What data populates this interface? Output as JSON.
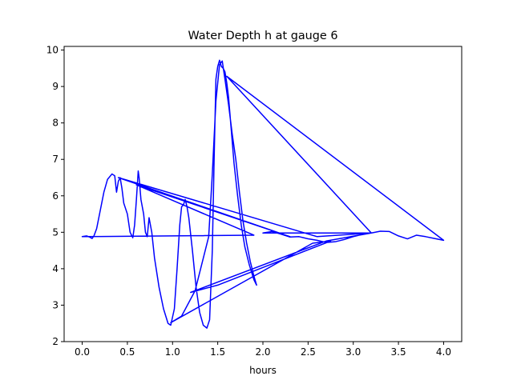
{
  "chart_data": {
    "type": "line",
    "title": "Water Depth h at gauge 6",
    "xlabel": "hours",
    "ylabel": "",
    "xlim": [
      -0.2,
      4.2
    ],
    "ylim": [
      2.0,
      10.1
    ],
    "xticks": [
      "0.0",
      "0.5",
      "1.0",
      "1.5",
      "2.0",
      "2.5",
      "3.0",
      "3.5",
      "4.0"
    ],
    "yticks": [
      "2",
      "3",
      "4",
      "5",
      "6",
      "7",
      "8",
      "9",
      "10"
    ],
    "grid": false,
    "legend": "none",
    "color": "#0000ff",
    "series": [
      {
        "x": [
          0.0,
          0.05,
          0.08,
          0.11,
          0.13,
          0.16,
          0.2,
          0.24,
          0.28,
          0.33,
          0.36,
          0.38,
          0.4,
          0.42,
          0.44,
          0.46,
          0.5,
          0.53,
          0.56,
          0.58,
          0.6,
          0.62,
          0.63,
          0.65,
          0.68,
          0.7,
          0.72,
          0.74,
          0.77,
          0.8,
          0.85,
          0.9,
          0.95,
          0.98,
          1.02,
          1.05,
          1.08,
          1.1,
          1.12,
          1.14,
          1.16,
          1.18,
          1.22,
          1.26,
          1.3,
          1.34,
          1.38,
          1.41,
          1.44,
          1.46,
          1.48,
          1.5,
          1.52,
          1.54,
          1.56,
          1.58,
          1.6,
          1.62,
          1.65,
          1.68,
          1.72,
          1.76,
          1.8,
          1.85,
          1.9,
          1.93,
          1.93,
          1.9,
          1.86,
          1.82,
          1.78,
          1.74,
          1.7,
          1.66,
          1.62,
          1.58,
          1.55,
          1.52,
          1.48,
          1.44,
          1.4,
          1.4,
          1.25,
          1.1,
          0.98,
          0.98,
          2.55,
          2.75,
          2.75,
          1.5,
          1.2,
          1.2,
          2.7,
          3.2,
          3.2,
          3.3,
          3.4,
          3.5,
          3.6,
          3.7,
          3.8,
          3.9,
          4.0,
          4.0,
          1.6,
          1.6,
          3.2,
          3.2,
          2.0,
          2.0,
          2.1,
          2.2,
          2.3,
          2.4,
          2.5,
          2.6,
          2.7,
          2.8,
          2.9,
          3.0,
          3.1,
          3.2,
          3.2,
          2.6,
          2.6,
          0.4,
          0.4,
          2.3,
          2.3,
          0.6,
          0.6,
          1.9,
          1.9,
          0.0
        ],
        "y": [
          4.88,
          4.9,
          4.87,
          4.83,
          4.9,
          5.1,
          5.6,
          6.1,
          6.45,
          6.6,
          6.55,
          6.1,
          6.4,
          6.5,
          6.2,
          5.8,
          5.5,
          5.0,
          4.85,
          5.2,
          5.9,
          6.68,
          6.5,
          5.9,
          5.5,
          5.0,
          4.88,
          5.4,
          5.0,
          4.3,
          3.5,
          2.9,
          2.5,
          2.45,
          2.9,
          4.0,
          5.2,
          5.7,
          5.75,
          5.9,
          5.7,
          5.4,
          4.5,
          3.5,
          2.8,
          2.45,
          2.37,
          2.6,
          4.5,
          7.0,
          9.2,
          9.55,
          9.72,
          9.55,
          9.5,
          9.4,
          9.1,
          8.7,
          7.8,
          6.9,
          6.0,
          5.2,
          4.6,
          4.1,
          3.7,
          3.55,
          3.55,
          3.8,
          4.2,
          4.7,
          5.3,
          6.1,
          7.0,
          7.7,
          8.5,
          9.2,
          9.7,
          9.6,
          8.6,
          6.6,
          4.88,
          4.88,
          3.4,
          2.7,
          2.52,
          2.52,
          4.7,
          4.76,
          4.76,
          3.55,
          3.35,
          3.35,
          4.76,
          4.98,
          4.98,
          5.03,
          5.02,
          4.9,
          4.82,
          4.92,
          4.88,
          4.83,
          4.78,
          4.78,
          9.28,
          9.28,
          4.98,
          4.98,
          4.98,
          4.98,
          5.02,
          4.95,
          4.87,
          4.88,
          4.82,
          4.78,
          4.72,
          4.74,
          4.8,
          4.88,
          4.94,
          4.98,
          4.98,
          4.88,
          4.88,
          6.5,
          6.5,
          4.88,
          4.88,
          6.3,
          6.3,
          4.92,
          4.92,
          4.88
        ]
      }
    ]
  }
}
